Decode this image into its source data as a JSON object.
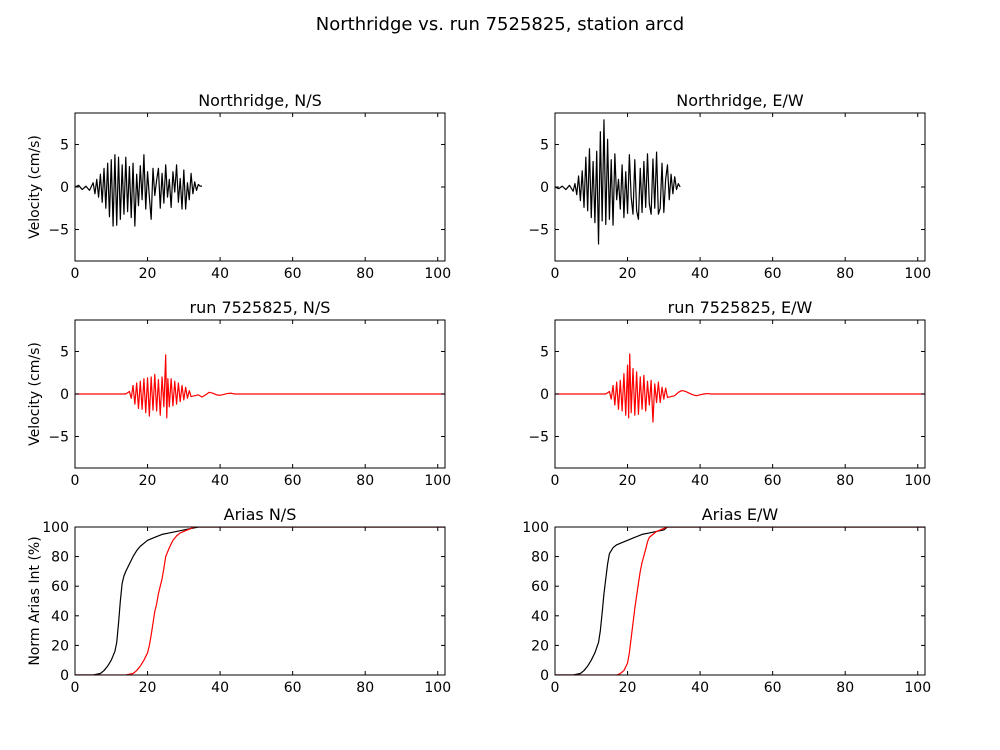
{
  "figure": {
    "title": "Northridge vs. run 7525825, station arcd"
  },
  "colors": {
    "recorded": "#000000",
    "simulated": "#ff0000"
  },
  "chart_data": [
    {
      "id": "ns-recorded",
      "type": "line",
      "title": "Northridge, N/S",
      "xlabel": "",
      "ylabel": "Velocity (cm/s)",
      "xlim": [
        0,
        102
      ],
      "ylim": [
        -8.7,
        8.7
      ],
      "xticks": [
        0,
        20,
        40,
        60,
        80,
        100
      ],
      "yticks": [
        -5,
        0,
        5
      ],
      "series": [
        {
          "color": "#000000",
          "x": [
            0,
            1,
            2,
            3,
            4,
            5,
            5.5,
            6,
            6.5,
            7,
            7.5,
            8,
            8.5,
            9,
            9.5,
            10,
            10.5,
            11,
            11.5,
            12,
            12.5,
            13,
            13.5,
            14,
            14.5,
            15,
            15.5,
            16,
            16.5,
            17,
            17.5,
            18,
            18.5,
            19,
            19.5,
            20,
            20.5,
            21,
            21.5,
            22,
            22.5,
            23,
            23.5,
            24,
            24.5,
            25,
            25.5,
            26,
            26.5,
            27,
            27.5,
            28,
            28.5,
            29,
            29.5,
            30,
            30.5,
            31,
            31.5,
            32,
            32.5,
            33,
            33.5,
            34,
            34.5,
            35
          ],
          "y": [
            0,
            0.2,
            -0.3,
            0.1,
            -0.4,
            0.5,
            -0.8,
            0.9,
            -1.2,
            1.5,
            -1.8,
            2.2,
            -2.5,
            2.8,
            -3.5,
            3.2,
            -4.6,
            3.8,
            -4.5,
            3.5,
            -3.8,
            2.6,
            -3.2,
            3.5,
            -2.9,
            2.4,
            -3.6,
            2.8,
            -4.6,
            1.5,
            -2.2,
            2.5,
            -1.5,
            3.8,
            -2.6,
            1.8,
            -1.2,
            -3.8,
            2.2,
            -1.0,
            0.8,
            2.2,
            -2.5,
            1.6,
            -1.9,
            2.6,
            -1.2,
            0.9,
            -2.4,
            1.8,
            -0.6,
            2.6,
            -1.8,
            1.0,
            -2.6,
            2.0,
            -2.6,
            0.5,
            -1.5,
            1.6,
            -0.8,
            0.6,
            -0.4,
            0.3,
            0.1,
            0.1
          ]
        }
      ]
    },
    {
      "id": "ew-recorded",
      "type": "line",
      "title": "Northridge, E/W",
      "xlabel": "",
      "ylabel": "",
      "xlim": [
        0,
        102
      ],
      "ylim": [
        -8.7,
        8.7
      ],
      "xticks": [
        0,
        20,
        40,
        60,
        80,
        100
      ],
      "yticks": [
        -5,
        0,
        5
      ],
      "series": [
        {
          "color": "#000000",
          "x": [
            0,
            1,
            2,
            3,
            4,
            5,
            5.5,
            6,
            6.5,
            7,
            7.5,
            8,
            8.5,
            9,
            9.5,
            10,
            10.5,
            11,
            11.5,
            12,
            12.5,
            13,
            13.5,
            14,
            14.5,
            15,
            15.5,
            16,
            16.5,
            17,
            17.5,
            18,
            18.5,
            19,
            19.5,
            20,
            20.5,
            21,
            21.5,
            22,
            22.5,
            23,
            23.5,
            24,
            24.5,
            25,
            25.5,
            26,
            26.5,
            27,
            27.5,
            28,
            28.5,
            29,
            29.5,
            30,
            30.5,
            31,
            31.5,
            32,
            32.5,
            33,
            33.5,
            34,
            34.5
          ],
          "y": [
            0,
            -0.2,
            0.1,
            -0.3,
            0.2,
            -0.5,
            0.4,
            -0.9,
            1.3,
            -1.6,
            1.9,
            -2.4,
            3.5,
            -2.8,
            4.5,
            -3.6,
            3.0,
            -4.2,
            4.2,
            -6.7,
            6.5,
            -4.0,
            7.9,
            -4.4,
            5.6,
            -3.8,
            3.2,
            -4.5,
            3.9,
            -1.5,
            0.9,
            -2.6,
            2.6,
            -3.6,
            1.8,
            -3.1,
            3.8,
            -1.2,
            -3.2,
            3.2,
            -2.8,
            -3.8,
            2.2,
            -3.0,
            3.0,
            -2.4,
            3.9,
            -2.0,
            -3.2,
            3.3,
            -2.5,
            4.1,
            -3.2,
            -2.5,
            2.8,
            -3.0,
            0.9,
            2.6,
            -1.5,
            1.5,
            -0.8,
            1.2,
            -0.3,
            0.4,
            0.0
          ]
        }
      ]
    },
    {
      "id": "ns-simulated",
      "type": "line",
      "title": "run 7525825, N/S",
      "xlabel": "",
      "ylabel": "Velocity (cm/s)",
      "xlim": [
        0,
        102
      ],
      "ylim": [
        -8.7,
        8.7
      ],
      "xticks": [
        0,
        20,
        40,
        60,
        80,
        100
      ],
      "yticks": [
        -5,
        0,
        5
      ],
      "series": [
        {
          "color": "#ff0000",
          "x": [
            0,
            5,
            10,
            14,
            15,
            15.5,
            16,
            16.5,
            17,
            17.5,
            18,
            18.5,
            19,
            19.5,
            20,
            20.5,
            21,
            21.5,
            22,
            22.5,
            23,
            23.5,
            24,
            24.5,
            25,
            25.3,
            25.6,
            26,
            26.5,
            27,
            27.5,
            28,
            28.5,
            29,
            29.5,
            30,
            30.5,
            31,
            31.5,
            32,
            33,
            34,
            35,
            36,
            37,
            38,
            39,
            40,
            41,
            42,
            43,
            44,
            45,
            50,
            60,
            70,
            80,
            90,
            100,
            102
          ],
          "y": [
            0,
            0,
            0,
            0,
            0.3,
            -0.5,
            1.0,
            -1.2,
            1.3,
            -1.7,
            1.5,
            -1.8,
            1.8,
            -2.2,
            1.9,
            -2.6,
            2.0,
            -1.9,
            2.3,
            -2.0,
            1.7,
            -2.5,
            2.0,
            -1.5,
            4.6,
            -2.8,
            1.8,
            -1.5,
            1.8,
            -1.4,
            1.5,
            -1.2,
            1.3,
            -0.9,
            1.0,
            -0.7,
            0.8,
            -0.5,
            0.4,
            -0.3,
            -0.2,
            -0.1,
            -0.35,
            -0.1,
            0.2,
            0.1,
            -0.1,
            -0.15,
            -0.05,
            0.05,
            0.1,
            0,
            0,
            0,
            0,
            0,
            0,
            0,
            0,
            0
          ]
        }
      ]
    },
    {
      "id": "ew-simulated",
      "type": "line",
      "title": "run 7525825, E/W",
      "xlabel": "",
      "ylabel": "",
      "xlim": [
        0,
        102
      ],
      "ylim": [
        -8.7,
        8.7
      ],
      "xticks": [
        0,
        20,
        40,
        60,
        80,
        100
      ],
      "yticks": [
        -5,
        0,
        5
      ],
      "series": [
        {
          "color": "#ff0000",
          "x": [
            0,
            5,
            10,
            14,
            15,
            15.5,
            16,
            16.5,
            17,
            17.5,
            18,
            18.5,
            19,
            19.5,
            20,
            20.3,
            20.6,
            21,
            21.5,
            22,
            22.5,
            23,
            23.5,
            24,
            24.5,
            25,
            25.5,
            26,
            26.5,
            27,
            27.5,
            28,
            28.5,
            29,
            29.5,
            30,
            30.5,
            31,
            32,
            33,
            34,
            35,
            36,
            37,
            38,
            39,
            40,
            41,
            42,
            43,
            44,
            50,
            60,
            70,
            80,
            90,
            100,
            102
          ],
          "y": [
            0,
            0,
            0,
            0,
            0.3,
            -0.6,
            1.0,
            -1.3,
            1.4,
            -1.8,
            1.6,
            -2.0,
            2.4,
            -2.5,
            3.4,
            -2.8,
            4.7,
            -2.2,
            3.0,
            -2.5,
            2.6,
            -2.4,
            2.0,
            -1.8,
            2.2,
            -2.0,
            1.5,
            -1.3,
            1.6,
            -3.3,
            1.2,
            -1.0,
            1.4,
            -1.0,
            0.8,
            -0.6,
            0.7,
            -0.4,
            -0.3,
            -0.2,
            0.2,
            0.4,
            0.3,
            0.1,
            -0.1,
            -0.2,
            -0.1,
            0,
            0.05,
            0,
            0,
            0,
            0,
            0,
            0,
            0,
            0,
            0
          ]
        }
      ]
    },
    {
      "id": "arias-ns",
      "type": "line",
      "title": "Arias N/S",
      "xlabel": "",
      "ylabel": "Norm Arias Int (%)",
      "xlim": [
        0,
        102
      ],
      "ylim": [
        0,
        100
      ],
      "xticks": [
        0,
        20,
        40,
        60,
        80,
        100
      ],
      "yticks": [
        0,
        20,
        40,
        60,
        80,
        100
      ],
      "series": [
        {
          "color": "#000000",
          "x": [
            0,
            5,
            7,
            8,
            9,
            10,
            11,
            11.5,
            12,
            12.5,
            13,
            13.5,
            14,
            15,
            16,
            17,
            18,
            19,
            20,
            21,
            22,
            24,
            26,
            28,
            30,
            32,
            34,
            35,
            102
          ],
          "y": [
            0,
            0,
            1,
            3,
            6,
            10,
            16,
            22,
            35,
            50,
            62,
            67,
            70,
            75,
            80,
            84,
            87,
            89,
            91,
            92,
            93,
            95,
            96,
            97,
            98,
            99,
            100,
            100,
            100
          ]
        },
        {
          "color": "#ff0000",
          "x": [
            0,
            14,
            15,
            16,
            17,
            18,
            19,
            20,
            20.5,
            21,
            21.5,
            22,
            22.5,
            23,
            23.5,
            24,
            24.5,
            25,
            26,
            27,
            28,
            29,
            30,
            31,
            32,
            33,
            102
          ],
          "y": [
            0,
            0,
            0.5,
            1,
            3,
            6,
            10,
            15,
            20,
            27,
            35,
            43,
            48,
            55,
            60,
            65,
            72,
            80,
            86,
            91,
            94,
            96,
            97,
            98,
            99,
            100,
            100
          ]
        }
      ]
    },
    {
      "id": "arias-ew",
      "type": "line",
      "title": "Arias E/W",
      "xlabel": "",
      "ylabel": "",
      "xlim": [
        0,
        102
      ],
      "ylim": [
        0,
        100
      ],
      "xticks": [
        0,
        20,
        40,
        60,
        80,
        100
      ],
      "yticks": [
        0,
        20,
        40,
        60,
        80,
        100
      ],
      "series": [
        {
          "color": "#000000",
          "x": [
            0,
            5,
            7,
            8,
            9,
            10,
            11,
            12,
            12.5,
            13,
            13.5,
            14,
            14.5,
            15,
            16,
            17,
            18,
            19,
            20,
            22,
            24,
            26,
            28,
            30,
            31,
            102
          ],
          "y": [
            0,
            0,
            1,
            3,
            6,
            10,
            15,
            22,
            30,
            42,
            55,
            65,
            75,
            82,
            86,
            88,
            89,
            90,
            91,
            93,
            95,
            96,
            97,
            98,
            100,
            100
          ]
        },
        {
          "color": "#ff0000",
          "x": [
            0,
            15,
            17,
            18,
            19,
            20,
            20.5,
            21,
            21.5,
            22,
            23,
            23.5,
            24,
            25,
            25.5,
            26,
            27,
            28,
            29,
            30,
            31,
            102
          ],
          "y": [
            0,
            0,
            0,
            1,
            3,
            8,
            15,
            25,
            35,
            45,
            62,
            70,
            76,
            85,
            90,
            93,
            95,
            97,
            98,
            99,
            100,
            100
          ]
        }
      ]
    }
  ]
}
